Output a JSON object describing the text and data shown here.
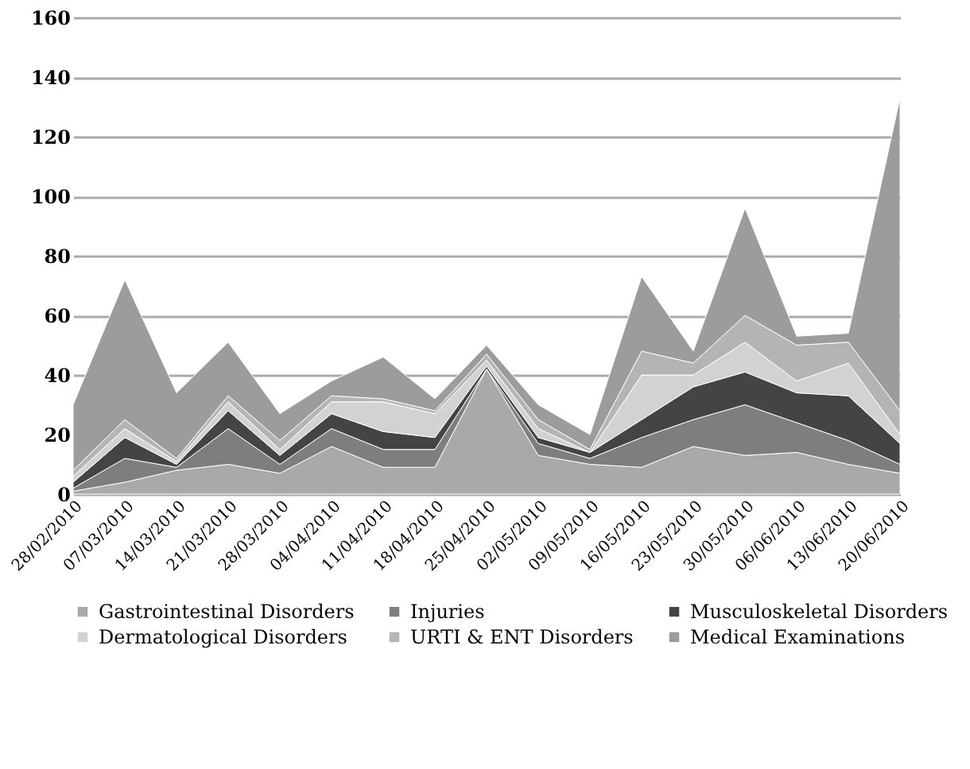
{
  "chart_data": {
    "type": "area",
    "stacked": true,
    "categories": [
      "28/02/2010",
      "07/03/2010",
      "14/03/2010",
      "21/03/2010",
      "28/03/2010",
      "04/04/2010",
      "11/04/2010",
      "18/04/2010",
      "25/04/2010",
      "02/05/2010",
      "09/05/2010",
      "16/05/2010",
      "23/05/2010",
      "30/05/2010",
      "06/06/2010",
      "13/06/2010",
      "20/06/2010"
    ],
    "series": [
      {
        "name": "Gastrointestinal Disorders",
        "color": "#a9a9a9",
        "values": [
          1,
          4,
          8,
          10,
          7,
          16,
          9,
          9,
          42,
          13,
          10,
          9,
          16,
          13,
          14,
          10,
          7
        ]
      },
      {
        "name": "Injuries",
        "color": "#7e7e7e",
        "values": [
          1,
          8,
          1,
          12,
          3,
          6,
          6,
          6,
          0,
          4,
          2,
          10,
          9,
          17,
          10,
          8,
          3
        ]
      },
      {
        "name": "Musculoskeletal Disorders",
        "color": "#444444",
        "values": [
          2,
          7,
          1,
          6,
          3,
          5,
          6,
          4,
          1,
          2,
          2,
          6,
          11,
          11,
          10,
          15,
          7
        ]
      },
      {
        "name": "Dermatological Disorders",
        "color": "#d2d2d2",
        "values": [
          2,
          3,
          1,
          3,
          2,
          4,
          10,
          8,
          2,
          3,
          0,
          15,
          4,
          10,
          4,
          11,
          3
        ]
      },
      {
        "name": "URTI & ENT Disorders",
        "color": "#b4b4b4",
        "values": [
          2,
          3,
          1,
          2,
          3,
          2,
          1,
          1,
          2,
          3,
          1,
          8,
          4,
          9,
          12,
          7,
          8
        ]
      },
      {
        "name": "Medical Examinations",
        "color": "#9c9c9c",
        "values": [
          22,
          47,
          22,
          18,
          9,
          5,
          14,
          4,
          3,
          5,
          5,
          25,
          4,
          36,
          3,
          3,
          105
        ]
      }
    ],
    "ylim": [
      0,
      160
    ],
    "yticks": [
      0,
      20,
      40,
      60,
      80,
      100,
      120,
      140,
      160
    ],
    "grid": "y",
    "legend": "bottom"
  }
}
